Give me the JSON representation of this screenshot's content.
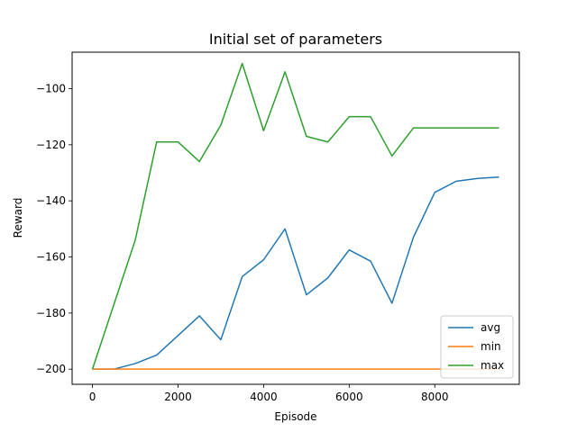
{
  "chart_data": {
    "type": "line",
    "title": "Initial set of parameters",
    "xlabel": "Episode",
    "ylabel": "Reward",
    "xlim": [
      -475,
      9975
    ],
    "ylim": [
      -205.4,
      -87.0
    ],
    "xticks": [
      0,
      2000,
      4000,
      6000,
      8000
    ],
    "yticks": [
      -200,
      -180,
      -160,
      -140,
      -120,
      -100
    ],
    "ytick_labels": [
      "−200",
      "−180",
      "−160",
      "−140",
      "−120",
      "−100"
    ],
    "grid": false,
    "legend_position": "lower-right",
    "x": [
      0,
      500,
      1000,
      1500,
      2000,
      2500,
      3000,
      3500,
      4000,
      4500,
      5000,
      5500,
      6000,
      6500,
      7000,
      7500,
      8000,
      8500,
      9000,
      9500
    ],
    "series": [
      {
        "name": "avg",
        "color": "#1f77b4",
        "values": [
          -200,
          -200,
          -198,
          -195,
          -188,
          -181,
          -189.5,
          -167,
          -161,
          -150,
          -173.5,
          -167.5,
          -157.5,
          -161.5,
          -176.5,
          -153,
          -137,
          -133,
          -132,
          -131.5
        ]
      },
      {
        "name": "min",
        "color": "#ff7f0e",
        "values": [
          -200,
          -200,
          -200,
          -200,
          -200,
          -200,
          -200,
          -200,
          -200,
          -200,
          -200,
          -200,
          -200,
          -200,
          -200,
          -200,
          -200,
          -200,
          -200,
          -200
        ]
      },
      {
        "name": "max",
        "color": "#2ca02c",
        "values": [
          -200,
          -177,
          -154,
          -119,
          -119,
          -126,
          -113,
          -91,
          -115,
          -94,
          -117,
          -119,
          -110,
          -110,
          -124,
          -114,
          -114,
          -114,
          -114,
          -114
        ]
      }
    ]
  }
}
